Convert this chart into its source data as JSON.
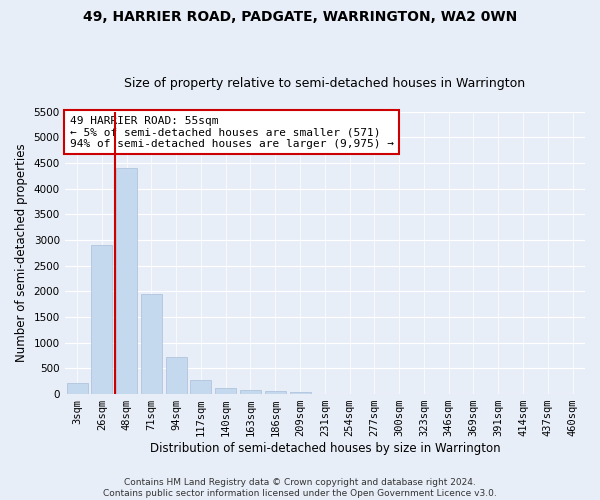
{
  "title": "49, HARRIER ROAD, PADGATE, WARRINGTON, WA2 0WN",
  "subtitle": "Size of property relative to semi-detached houses in Warrington",
  "xlabel": "Distribution of semi-detached houses by size in Warrington",
  "ylabel": "Number of semi-detached properties",
  "footnote1": "Contains HM Land Registry data © Crown copyright and database right 2024.",
  "footnote2": "Contains public sector information licensed under the Open Government Licence v3.0.",
  "bar_labels": [
    "3sqm",
    "26sqm",
    "48sqm",
    "71sqm",
    "94sqm",
    "117sqm",
    "140sqm",
    "163sqm",
    "186sqm",
    "209sqm",
    "231sqm",
    "254sqm",
    "277sqm",
    "300sqm",
    "323sqm",
    "346sqm",
    "369sqm",
    "391sqm",
    "414sqm",
    "437sqm",
    "460sqm"
  ],
  "bar_values": [
    220,
    2900,
    4400,
    1950,
    720,
    280,
    120,
    80,
    55,
    40,
    10,
    5,
    2,
    2,
    1,
    1,
    1,
    1,
    1,
    0,
    0
  ],
  "bar_color": "#c5d9ee",
  "bar_edge_color": "#aabfda",
  "annotation_line1": "49 HARRIER ROAD: 55sqm",
  "annotation_line2": "← 5% of semi-detached houses are smaller (571)",
  "annotation_line3": "94% of semi-detached houses are larger (9,975) →",
  "annotation_box_color": "#ffffff",
  "annotation_box_edge_color": "#cc0000",
  "vline_x": 1.55,
  "vline_color": "#cc0000",
  "ylim": [
    0,
    5500
  ],
  "yticks": [
    0,
    500,
    1000,
    1500,
    2000,
    2500,
    3000,
    3500,
    4000,
    4500,
    5000,
    5500
  ],
  "bg_color": "#e8eef8",
  "grid_color": "#ffffff",
  "title_fontsize": 10,
  "subtitle_fontsize": 9,
  "axis_label_fontsize": 8.5,
  "tick_fontsize": 7.5,
  "annotation_fontsize": 8
}
